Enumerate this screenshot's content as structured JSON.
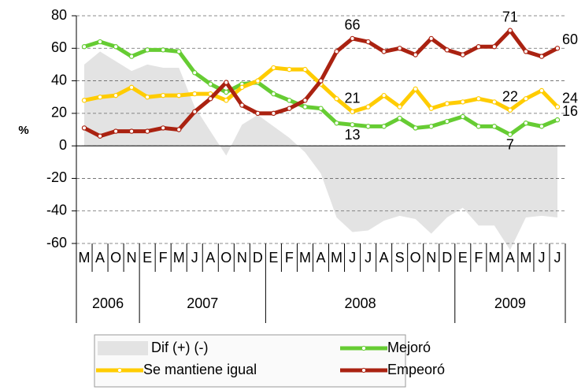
{
  "chart_data": {
    "type": "line",
    "y_label": "%",
    "categories": [
      "M",
      "A",
      "O",
      "N",
      "E",
      "F",
      "M",
      "J",
      "A",
      "O",
      "N",
      "D",
      "E",
      "F",
      "M",
      "A",
      "M",
      "J",
      "J",
      "A",
      "S",
      "O",
      "N",
      "D",
      "E",
      "F",
      "M",
      "A",
      "M",
      "J",
      "J"
    ],
    "years": [
      "2006",
      "2007",
      "2008",
      "2009"
    ],
    "series": [
      {
        "name": "Dif (+) (-)",
        "kind": "area",
        "color": "#e3e3e3",
        "values": [
          50,
          58,
          52,
          46,
          50,
          48,
          48,
          24,
          9,
          -6,
          13,
          19,
          12,
          5,
          -4,
          -17,
          -44,
          -53,
          -52,
          -46,
          -43,
          -45,
          -54,
          -44,
          -38,
          -49,
          -49,
          -64,
          -44,
          -43,
          -44
        ]
      },
      {
        "name": "Mejoró",
        "kind": "line",
        "color": "#66cc33",
        "values": [
          61,
          64,
          61,
          55,
          59,
          59,
          58,
          45,
          38,
          33,
          38,
          39,
          32,
          28,
          24,
          23,
          14,
          13,
          12,
          12,
          17,
          11,
          12,
          15,
          18,
          12,
          12,
          7,
          14,
          12,
          16
        ]
      },
      {
        "name": "Se mantiene igual",
        "kind": "line",
        "color": "#ffcc00",
        "values": [
          28,
          30,
          31,
          36,
          30,
          31,
          31,
          32,
          32,
          28,
          36,
          40,
          48,
          47,
          47,
          38,
          29,
          21,
          24,
          31,
          24,
          35,
          23,
          26,
          27,
          29,
          27,
          22,
          29,
          34,
          24
        ]
      },
      {
        "name": "Empeoró",
        "kind": "line",
        "color": "#aa2211",
        "values": [
          11,
          6,
          9,
          9,
          9,
          11,
          10,
          21,
          29,
          39,
          25,
          20,
          20,
          23,
          28,
          40,
          58,
          66,
          64,
          58,
          60,
          56,
          66,
          59,
          56,
          61,
          61,
          71,
          58,
          55,
          60
        ]
      }
    ],
    "ylim": [
      -60,
      80
    ],
    "yticks": [
      -60,
      -40,
      -20,
      0,
      20,
      40,
      60,
      80
    ],
    "grid": true
  }
}
